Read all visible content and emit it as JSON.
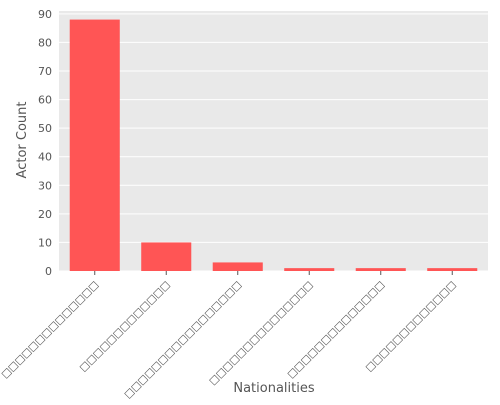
{
  "chart_data": {
    "type": "bar",
    "categories": [
      "□□□□□□□□□□□□□□",
      "□□□□□□□□□□□□□",
      "□□□□□□□□□□□□□□□□□",
      "□□□□□□□□□□□□□□□",
      "□□□□□□□□□□□□□□",
      "□□□□□□□□□□□□□"
    ],
    "values": [
      88,
      10,
      3,
      1,
      1,
      1
    ],
    "title": "",
    "xlabel": "Nationalities",
    "ylabel": "Actor Count",
    "ylim": [
      0,
      91
    ],
    "yticks": [
      0,
      10,
      20,
      30,
      40,
      50,
      60,
      70,
      80,
      90
    ],
    "grid": true,
    "bar_color": "#ff5555",
    "background_color": "#e9e9e9",
    "grid_color": "#ffffff"
  }
}
